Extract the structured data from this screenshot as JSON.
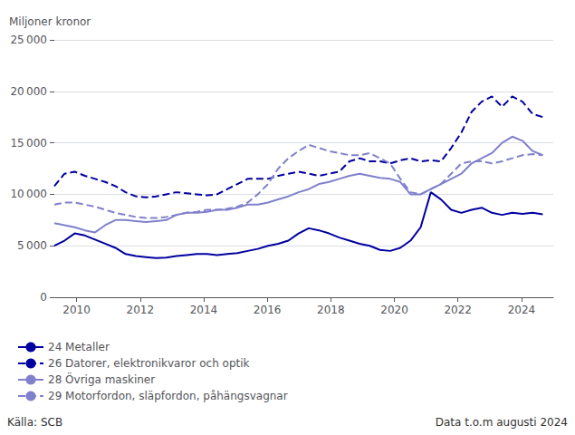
{
  "chart_data": {
    "type": "line",
    "ylabel": "Miljoner kronor",
    "annotations": [
      "Källa: SCB",
      "Data t.o.m augusti 2024"
    ],
    "x": [
      2009.3,
      2009.6202,
      2009.9404,
      2010.2606,
      2010.5808,
      2010.901,
      2011.2213,
      2011.5415,
      2011.8617,
      2012.1819,
      2012.5021,
      2012.8223,
      2013.1425,
      2013.4627,
      2013.7829,
      2014.1031,
      2014.4233,
      2014.7435,
      2015.0638,
      2015.384,
      2015.7042,
      2016.0244,
      2016.3446,
      2016.6648,
      2016.985,
      2017.3052,
      2017.6254,
      2017.9456,
      2018.2658,
      2018.586,
      2018.9063,
      2019.2265,
      2019.5467,
      2019.8669,
      2020.1871,
      2020.5073,
      2020.8275,
      2021.1477,
      2021.4679,
      2021.7881,
      2022.1083,
      2022.4285,
      2022.7488,
      2023.069,
      2023.3892,
      2023.7094,
      2024.0296,
      2024.3498,
      2024.67
    ],
    "series": [
      {
        "name": "24 Metaller",
        "color": "#0000a0",
        "line_style": "solid",
        "values": [
          5000,
          5500,
          6200,
          6000,
          5600,
          5200,
          4800,
          4200,
          4000,
          3900,
          3800,
          3850,
          4000,
          4100,
          4200,
          4200,
          4100,
          4200,
          4300,
          4500,
          4700,
          5000,
          5200,
          5500,
          6200,
          6700,
          6500,
          6200,
          5800,
          5500,
          5200,
          5000,
          4600,
          4500,
          4800,
          5500,
          6800,
          10200,
          9500,
          8500,
          8200,
          8500,
          8700,
          8200,
          8000,
          8200,
          8100,
          8200,
          8050
        ]
      },
      {
        "name": "26 Datorer, elektronikvaror och optik",
        "color": "#0000a0",
        "line_style": "dashed",
        "values": [
          10800,
          12000,
          12200,
          11800,
          11500,
          11200,
          10800,
          10200,
          9800,
          9700,
          9800,
          10000,
          10200,
          10100,
          10000,
          9900,
          10000,
          10500,
          11000,
          11500,
          11500,
          11500,
          11800,
          12000,
          12200,
          12000,
          11800,
          12000,
          12200,
          13200,
          13500,
          13200,
          13200,
          13000,
          13300,
          13500,
          13200,
          13300,
          13200,
          14500,
          16000,
          18000,
          19000,
          19500,
          18500,
          19500,
          19000,
          17800,
          17500
        ]
      },
      {
        "name": "28 Övriga maskiner",
        "color": "#8080cc",
        "line_style": "solid",
        "values": [
          7200,
          7000,
          6800,
          6500,
          6300,
          7000,
          7500,
          7500,
          7400,
          7300,
          7400,
          7500,
          8000,
          8200,
          8200,
          8300,
          8500,
          8500,
          8700,
          9000,
          9000,
          9200,
          9500,
          9800,
          10200,
          10500,
          11000,
          11200,
          11500,
          11800,
          12000,
          11800,
          11600,
          11500,
          11200,
          10000,
          10000,
          10500,
          11000,
          11500,
          12000,
          13000,
          13500,
          14000,
          15000,
          15600,
          15200,
          14200,
          13800
        ]
      },
      {
        "name": "29 Motorfordon, släpfordon, påhängsvagnar",
        "color": "#8080cc",
        "line_style": "dashed",
        "values": [
          9000,
          9200,
          9200,
          9000,
          8800,
          8500,
          8200,
          8000,
          7800,
          7700,
          7700,
          7800,
          8000,
          8200,
          8300,
          8500,
          8500,
          8600,
          8800,
          9200,
          10000,
          11000,
          12500,
          13500,
          14200,
          14800,
          14500,
          14200,
          14000,
          13800,
          13800,
          14000,
          13500,
          13000,
          11500,
          10200,
          10000,
          10500,
          11000,
          12000,
          13000,
          13200,
          13200,
          13000,
          13200,
          13500,
          13800,
          13900,
          13800
        ]
      }
    ],
    "xlim": [
      2009.3,
      2025.0
    ],
    "xticks": [
      2010,
      2012,
      2014,
      2016,
      2018,
      2020,
      2022,
      2024
    ],
    "ylim": [
      0,
      25000
    ],
    "yticks": [
      0,
      {
        "value": 5000,
        "label": "5 000"
      },
      {
        "value": 10000,
        "label": "10 000"
      },
      {
        "value": 15000,
        "label": "15 000"
      },
      {
        "value": 20000,
        "label": "20 000"
      },
      {
        "value": 25000,
        "label": "25 000"
      }
    ],
    "grid": "y",
    "legend": "bottom"
  }
}
